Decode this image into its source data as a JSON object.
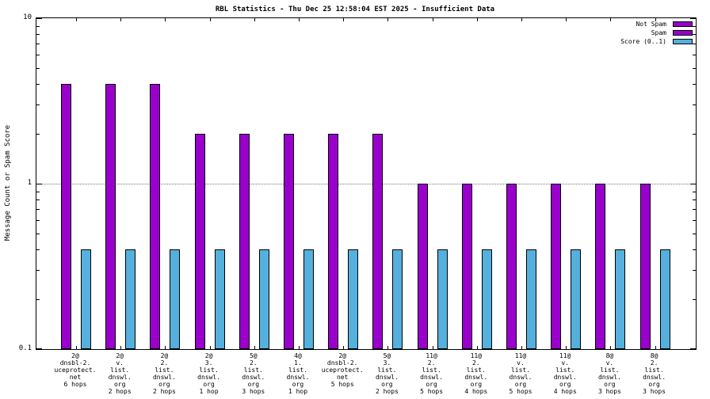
{
  "title": "RBL Statistics - Thu Dec 25 12:58:04 EST 2025 - Insufficient Data",
  "ylabel": "Message Count or Spam Score",
  "legend": {
    "items": [
      {
        "label": "Not Spam",
        "color": "#9900cc"
      },
      {
        "label": "Spam",
        "color": "#9900cc"
      },
      {
        "label": "Score (0..1)",
        "color": "#55b0dd"
      }
    ]
  },
  "chart_data": {
    "type": "bar",
    "yscale": "log",
    "ylim": [
      0.1,
      10
    ],
    "ylabel": "Message Count or Spam Score",
    "yticks": [
      {
        "value": 10,
        "label": "10"
      },
      {
        "value": 1,
        "label": "1"
      },
      {
        "value": 0.1,
        "label": "0.1"
      }
    ],
    "gridlines": [
      1
    ],
    "series": [
      {
        "name": "Not Spam",
        "color": "#9900cc"
      },
      {
        "name": "Score (0..1)",
        "color": "#55b0dd"
      }
    ],
    "groups": [
      {
        "label_lines": [
          "2@",
          "dnsbl-2.",
          "uceprotect.",
          "net",
          "6 hops"
        ],
        "not_spam": 4,
        "score": 0.4
      },
      {
        "label_lines": [
          "2@",
          "v.",
          "list.",
          "dnswl.",
          "org",
          "2 hops"
        ],
        "not_spam": 4,
        "score": 0.4
      },
      {
        "label_lines": [
          "2@",
          "2.",
          "list.",
          "dnswl.",
          "org",
          "2 hops"
        ],
        "not_spam": 4,
        "score": 0.4
      },
      {
        "label_lines": [
          "2@",
          "3.",
          "list.",
          "dnswl.",
          "org",
          "1 hop"
        ],
        "not_spam": 2,
        "score": 0.4
      },
      {
        "label_lines": [
          "5@",
          "2.",
          "list.",
          "dnswl.",
          "org",
          "3 hops"
        ],
        "not_spam": 2,
        "score": 0.4
      },
      {
        "label_lines": [
          "4@",
          "1.",
          "list.",
          "dnswl.",
          "org",
          "1 hop"
        ],
        "not_spam": 2,
        "score": 0.4
      },
      {
        "label_lines": [
          "2@",
          "dnsbl-2.",
          "uceprotect.",
          "net",
          "5 hops"
        ],
        "not_spam": 2,
        "score": 0.4
      },
      {
        "label_lines": [
          "5@",
          "3.",
          "list.",
          "dnswl.",
          "org",
          "2 hops"
        ],
        "not_spam": 2,
        "score": 0.4
      },
      {
        "label_lines": [
          "11@",
          "2.",
          "list.",
          "dnswl.",
          "org",
          "5 hops"
        ],
        "not_spam": 1,
        "score": 0.4
      },
      {
        "label_lines": [
          "11@",
          "2.",
          "list.",
          "dnswl.",
          "org",
          "4 hops"
        ],
        "not_spam": 1,
        "score": 0.4
      },
      {
        "label_lines": [
          "11@",
          "v.",
          "list.",
          "dnswl.",
          "org",
          "5 hops"
        ],
        "not_spam": 1,
        "score": 0.4
      },
      {
        "label_lines": [
          "11@",
          "v.",
          "list.",
          "dnswl.",
          "org",
          "4 hops"
        ],
        "not_spam": 1,
        "score": 0.4
      },
      {
        "label_lines": [
          "8@",
          "v.",
          "list.",
          "dnswl.",
          "org",
          "3 hops"
        ],
        "not_spam": 1,
        "score": 0.4
      },
      {
        "label_lines": [
          "8@",
          "2.",
          "list.",
          "dnswl.",
          "org",
          "3 hops"
        ],
        "not_spam": 1,
        "score": 0.4
      }
    ]
  }
}
